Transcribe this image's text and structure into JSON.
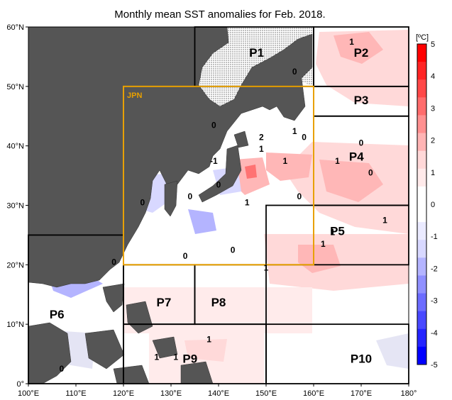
{
  "title": "Monthly mean SST anomalies for Feb. 2018.",
  "lat_ticks": [
    {
      "value": 60,
      "label": "60°N"
    },
    {
      "value": 50,
      "label": "50°N"
    },
    {
      "value": 40,
      "label": "40°N"
    },
    {
      "value": 30,
      "label": "30°N"
    },
    {
      "value": 20,
      "label": "20°N"
    },
    {
      "value": 10,
      "label": "10°N"
    },
    {
      "value": 0,
      "label": "0°"
    }
  ],
  "lon_ticks": [
    {
      "value": 100,
      "label": "100°E"
    },
    {
      "value": 110,
      "label": "110°E"
    },
    {
      "value": 120,
      "label": "120°E"
    },
    {
      "value": 130,
      "label": "130°E"
    },
    {
      "value": 140,
      "label": "140°E"
    },
    {
      "value": 150,
      "label": "150°E"
    },
    {
      "value": 160,
      "label": "160°E"
    },
    {
      "value": 170,
      "label": "170°E"
    },
    {
      "value": 180,
      "label": "180°"
    }
  ],
  "regions": [
    {
      "id": "P1",
      "label": "P1",
      "lon": [
        135,
        160
      ],
      "lat": [
        50,
        60
      ]
    },
    {
      "id": "P2",
      "label": "P2",
      "lon": [
        160,
        180
      ],
      "lat": [
        50,
        60
      ]
    },
    {
      "id": "P3",
      "label": "P3",
      "lon": [
        160,
        180
      ],
      "lat": [
        45,
        50
      ]
    },
    {
      "id": "P4",
      "label": "P4",
      "lon": [
        160,
        180
      ],
      "lat": [
        30,
        45
      ]
    },
    {
      "id": "P5",
      "label": "P5",
      "lon": [
        150,
        180
      ],
      "lat": [
        20,
        30
      ]
    },
    {
      "id": "P6",
      "label": "P6",
      "lon": [
        100,
        120
      ],
      "lat": [
        0,
        25
      ]
    },
    {
      "id": "P7",
      "label": "P7",
      "lon": [
        120,
        135
      ],
      "lat": [
        10,
        20
      ]
    },
    {
      "id": "P8",
      "label": "P8",
      "lon": [
        135,
        150
      ],
      "lat": [
        10,
        20
      ]
    },
    {
      "id": "P9",
      "label": "P9",
      "lon": [
        120,
        150
      ],
      "lat": [
        0,
        10
      ]
    },
    {
      "id": "P10",
      "label": "P10",
      "lon": [
        150,
        180
      ],
      "lat": [
        0,
        10
      ]
    }
  ],
  "region_labels": [
    {
      "text": "P1",
      "lon": 148,
      "lat": 55
    },
    {
      "text": "P2",
      "lon": 170,
      "lat": 55
    },
    {
      "text": "P3",
      "lon": 170,
      "lat": 47
    },
    {
      "text": "P4",
      "lon": 169,
      "lat": 37.5
    },
    {
      "text": "P5",
      "lon": 165,
      "lat": 25
    },
    {
      "text": "P6",
      "lon": 106,
      "lat": 11
    },
    {
      "text": "P7",
      "lon": 128.5,
      "lat": 13
    },
    {
      "text": "P8",
      "lon": 140,
      "lat": 13
    },
    {
      "text": "P9",
      "lon": 134,
      "lat": 3.5
    },
    {
      "text": "P10",
      "lon": 170,
      "lat": 3.5
    }
  ],
  "jpn_box": {
    "label": "JPN",
    "lon": [
      120,
      160
    ],
    "lat": [
      20,
      50
    ],
    "color": "#e8a000"
  },
  "contour_labels": [
    {
      "text": "1",
      "lon": 168,
      "lat": 57
    },
    {
      "text": "0",
      "lon": 156,
      "lat": 52
    },
    {
      "text": "0",
      "lon": 139,
      "lat": 43
    },
    {
      "text": "2",
      "lon": 149,
      "lat": 41
    },
    {
      "text": "1",
      "lon": 149,
      "lat": 39
    },
    {
      "text": "1",
      "lon": 156,
      "lat": 42
    },
    {
      "text": "0",
      "lon": 158,
      "lat": 41
    },
    {
      "text": "1",
      "lon": 154,
      "lat": 37
    },
    {
      "text": "-1",
      "lon": 139,
      "lat": 37
    },
    {
      "text": "0",
      "lon": 140,
      "lat": 33
    },
    {
      "text": "0",
      "lon": 124,
      "lat": 30
    },
    {
      "text": "0",
      "lon": 134,
      "lat": 31
    },
    {
      "text": "1",
      "lon": 146,
      "lat": 30
    },
    {
      "text": "0",
      "lon": 157,
      "lat": 31
    },
    {
      "text": "0",
      "lon": 170,
      "lat": 40
    },
    {
      "text": "1",
      "lon": 165,
      "lat": 37
    },
    {
      "text": "0",
      "lon": 172,
      "lat": 35
    },
    {
      "text": "1",
      "lon": 175,
      "lat": 27
    },
    {
      "text": "1",
      "lon": 164,
      "lat": 25
    },
    {
      "text": "1",
      "lon": 162,
      "lat": 23
    },
    {
      "text": "0",
      "lon": 143,
      "lat": 22
    },
    {
      "text": "0",
      "lon": 133,
      "lat": 21
    },
    {
      "text": "0",
      "lon": 118,
      "lat": 20
    },
    {
      "text": "1",
      "lon": 150,
      "lat": 19
    },
    {
      "text": "1",
      "lon": 138,
      "lat": 7
    },
    {
      "text": "1",
      "lon": 127,
      "lat": 4
    },
    {
      "text": "1",
      "lon": 131,
      "lat": 4
    },
    {
      "text": "0",
      "lon": 107,
      "lat": 2
    }
  ],
  "colorbar": {
    "unit_label": "[ºC]",
    "ticks": [
      "5",
      "4",
      "3",
      "2",
      "1",
      "0",
      "-1",
      "-2",
      "-3",
      "-4",
      "-5"
    ],
    "colors": [
      "#ff0000",
      "#ff2424",
      "#ff4848",
      "#ff6c6c",
      "#ff9090",
      "#ffb4b4",
      "#ffd8d8",
      "#ffeaea",
      "#ffffff",
      "#ffffff",
      "#eaeaff",
      "#d8d8ff",
      "#b4b4ff",
      "#9090ff",
      "#6c6cff",
      "#4848ff",
      "#2424ff",
      "#0000ff"
    ]
  },
  "colors": {
    "land": "#555555",
    "sea_ice": "#f4f4f4",
    "warm": "#ffc8c8",
    "cool": "#c8c8ff",
    "box": "#000000"
  }
}
